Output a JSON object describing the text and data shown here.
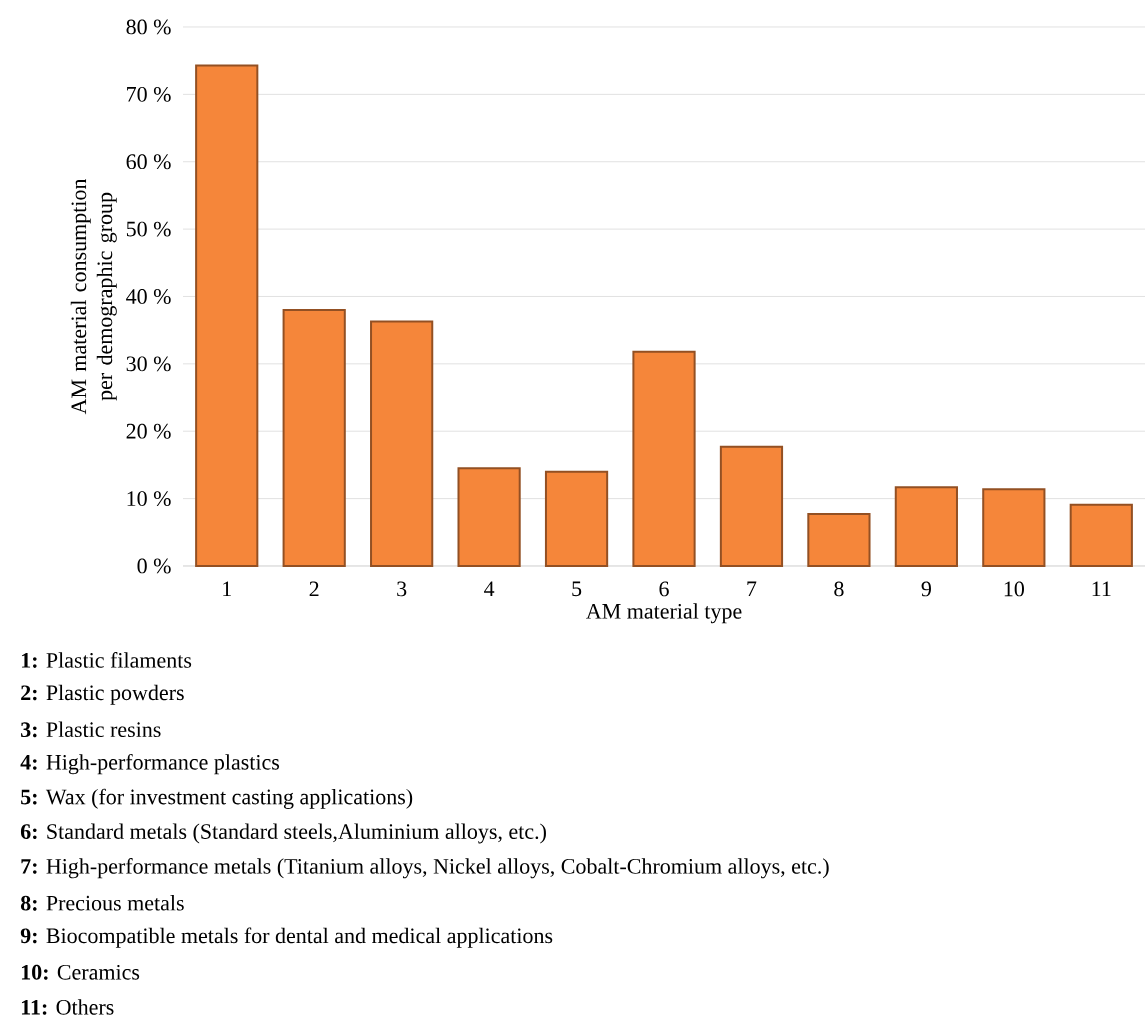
{
  "chart_data": {
    "type": "bar",
    "xlabel": "AM material type",
    "ylabel": "AM material consumption per demographic group",
    "categories": [
      "1",
      "2",
      "3",
      "4",
      "5",
      "6",
      "7",
      "8",
      "9",
      "10",
      "11"
    ],
    "values": [
      74.3,
      38,
      36.3,
      14.5,
      14,
      31.8,
      17.7,
      7.7,
      11.7,
      11.4,
      9.1
    ],
    "color": "#f5863a",
    "ylim": [
      0,
      80
    ],
    "yticks": [
      {
        "value": 0,
        "label": "0 %"
      },
      {
        "value": 10,
        "label": "10 %"
      },
      {
        "value": 20,
        "label": "20 %"
      },
      {
        "value": 30,
        "label": "30 %"
      },
      {
        "value": 40,
        "label": "40 %"
      },
      {
        "value": 50,
        "label": "50 %"
      },
      {
        "value": 60,
        "label": "60 %"
      },
      {
        "value": 70,
        "label": "70 %"
      },
      {
        "value": 80,
        "label": "80 %"
      }
    ],
    "grid": "y",
    "annotations": [
      "**1:** Plastic filaments",
      "**2:** Plastic powders",
      "**3:** Plastic resins",
      "**4:** High-performance plastics",
      "**5:** Wax (for investment casting applications)",
      "**6:** Standard metals (Standard steels,Aluminium alloys, etc.)",
      "**7:** High-performance metals (Titanium alloys, Nickel alloys, Cobalt-Chromium  alloys, etc.)",
      "**8:** Precious metals",
      "**9:** Biocompatible metals for dental and medical applications",
      "**10:** Ceramics",
      "**11:** Others"
    ]
  }
}
